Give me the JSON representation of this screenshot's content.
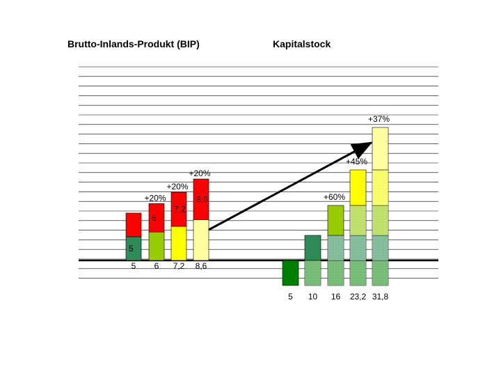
{
  "titles": {
    "left": "Brutto-Inlands-Produkt (BIP)",
    "right": "Kapitalstock"
  },
  "chart_data": [
    {
      "type": "bar",
      "title": "Brutto-Inlands-Produkt (BIP)",
      "stacked": true,
      "grid": true,
      "categories": [
        "5",
        "6",
        "7,2",
        "8,6"
      ],
      "totals": [
        5,
        6,
        7.2,
        8.6
      ],
      "growth_labels": [
        "",
        "+20%",
        "+20%",
        "+20%"
      ],
      "stacked_segments": [
        [
          {
            "value": 5,
            "label": "5",
            "color": "#2e8b57"
          },
          {
            "value": 5,
            "color": "#ff0000"
          }
        ],
        [
          {
            "value": 6,
            "color": "#99cc00"
          },
          {
            "value": 6,
            "label": "6",
            "color": "#ff0000"
          }
        ],
        [
          {
            "value": 7.2,
            "color": "#ffff00"
          },
          {
            "value": 7.2,
            "label": "7,2",
            "color": "#ff0000"
          }
        ],
        [
          {
            "value": 8.6,
            "color": "#ffffa0"
          },
          {
            "value": 8.6,
            "label": "8,6",
            "color": "#ff0000"
          }
        ]
      ]
    },
    {
      "type": "bar",
      "title": "Kapitalstock",
      "stacked": true,
      "grid": true,
      "categories": [
        "5",
        "10",
        "16",
        "23,2",
        "31,8"
      ],
      "totals": [
        5,
        10,
        16,
        23.2,
        31.8
      ],
      "growth_labels": [
        "",
        "",
        "+60%",
        "+45%",
        "+37%"
      ],
      "stacked_segments": [
        [
          {
            "value": 5,
            "color": "#008000"
          }
        ],
        [
          {
            "value": 5,
            "color": "#008000"
          },
          {
            "value": 5,
            "color": "#2e8b57"
          }
        ],
        [
          {
            "value": 5,
            "color": "#008000"
          },
          {
            "value": 5,
            "color": "#2e8b57"
          },
          {
            "value": 6,
            "color": "#99cc00"
          }
        ],
        [
          {
            "value": 5,
            "color": "#008000"
          },
          {
            "value": 5,
            "color": "#2e8b57"
          },
          {
            "value": 6,
            "color": "#99cc00"
          },
          {
            "value": 7.2,
            "color": "#ffff00"
          }
        ],
        [
          {
            "value": 5,
            "color": "#008000"
          },
          {
            "value": 5,
            "color": "#2e8b57"
          },
          {
            "value": 6,
            "color": "#99cc00"
          },
          {
            "value": 7.2,
            "color": "#ffff00"
          },
          {
            "value": 8.6,
            "color": "#ffffa0"
          }
        ]
      ]
    }
  ]
}
